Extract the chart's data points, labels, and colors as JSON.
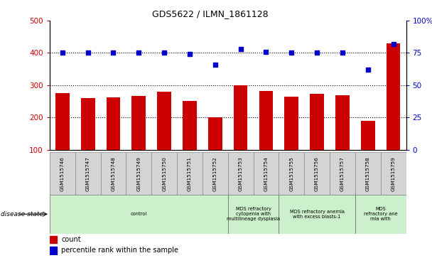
{
  "title": "GDS5622 / ILMN_1861128",
  "samples": [
    "GSM1515746",
    "GSM1515747",
    "GSM1515748",
    "GSM1515749",
    "GSM1515750",
    "GSM1515751",
    "GSM1515752",
    "GSM1515753",
    "GSM1515754",
    "GSM1515755",
    "GSM1515756",
    "GSM1515757",
    "GSM1515758",
    "GSM1515759"
  ],
  "counts": [
    275,
    260,
    263,
    267,
    280,
    250,
    200,
    300,
    282,
    265,
    272,
    268,
    190,
    430
  ],
  "percentile_ranks": [
    75,
    75,
    75,
    75,
    75,
    74,
    66,
    78,
    76,
    75,
    75,
    75,
    62,
    82
  ],
  "ylim_left": [
    100,
    500
  ],
  "ylim_right": [
    0,
    100
  ],
  "yticks_left": [
    100,
    200,
    300,
    400,
    500
  ],
  "yticks_right": [
    0,
    25,
    50,
    75,
    100
  ],
  "bar_color": "#cc0000",
  "dot_color": "#0000cc",
  "disease_states": [
    {
      "label": "control",
      "start": 0,
      "end": 7,
      "color": "#ccf0cc"
    },
    {
      "label": "MDS refractory\ncytopenia with\nmultilineage dysplasia",
      "start": 7,
      "end": 9,
      "color": "#ccf0cc"
    },
    {
      "label": "MDS refractory anemia\nwith excess blasts-1",
      "start": 9,
      "end": 12,
      "color": "#ccf0cc"
    },
    {
      "label": "MDS\nrefractory ane\nmia with",
      "start": 12,
      "end": 14,
      "color": "#ccf0cc"
    }
  ],
  "legend_count_label": "count",
  "legend_pct_label": "percentile rank within the sample",
  "disease_state_label": "disease state"
}
